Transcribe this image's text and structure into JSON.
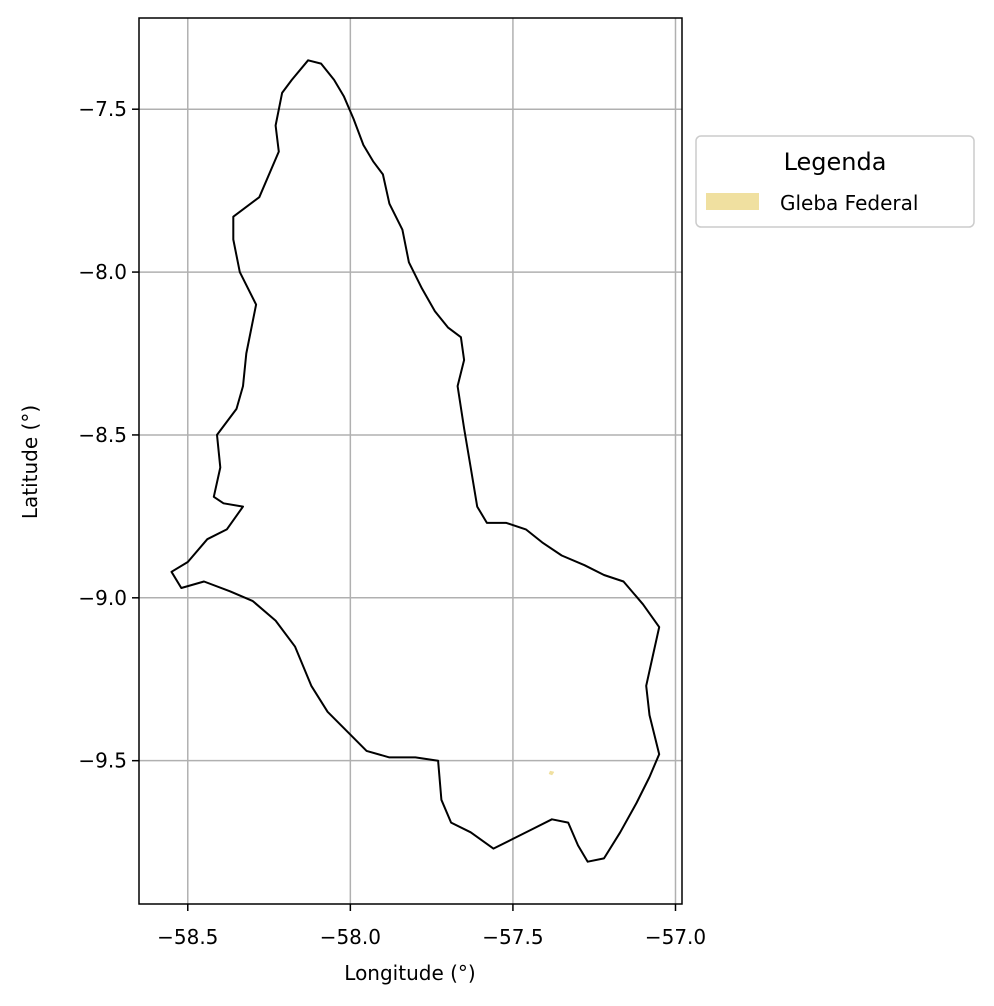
{
  "chart_data": {
    "type": "map",
    "xlabel": "Longitude (°)",
    "ylabel": "Latitude (°)",
    "xlim": [
      -58.65,
      -56.98
    ],
    "ylim": [
      -9.94,
      -7.22
    ],
    "xticks": [
      -58.5,
      -58.0,
      -57.5,
      -57.0
    ],
    "xtick_labels": [
      "−58.5",
      "−58.0",
      "−57.5",
      "−57.0"
    ],
    "yticks": [
      -7.5,
      -8.0,
      -8.5,
      -9.0,
      -9.5
    ],
    "ytick_labels": [
      "−7.5",
      "−8.0",
      "−8.5",
      "−9.0",
      "−9.5"
    ],
    "grid": true,
    "legend": {
      "title": "Legenda",
      "placement": "outside right, upper",
      "entries": [
        {
          "label": "Gleba Federal",
          "color": "#f0e0a0"
        }
      ]
    },
    "boundary_color": "#000000",
    "boundary": [
      [
        -58.13,
        -7.35
      ],
      [
        -58.09,
        -7.36
      ],
      [
        -58.05,
        -7.41
      ],
      [
        -58.02,
        -7.46
      ],
      [
        -57.99,
        -7.53
      ],
      [
        -57.96,
        -7.61
      ],
      [
        -57.93,
        -7.66
      ],
      [
        -57.9,
        -7.7
      ],
      [
        -57.88,
        -7.79
      ],
      [
        -57.84,
        -7.87
      ],
      [
        -57.82,
        -7.97
      ],
      [
        -57.78,
        -8.05
      ],
      [
        -57.74,
        -8.12
      ],
      [
        -57.7,
        -8.17
      ],
      [
        -57.66,
        -8.2
      ],
      [
        -57.65,
        -8.27
      ],
      [
        -57.67,
        -8.35
      ],
      [
        -57.65,
        -8.48
      ],
      [
        -57.63,
        -8.6
      ],
      [
        -57.61,
        -8.72
      ],
      [
        -57.58,
        -8.77
      ],
      [
        -57.52,
        -8.77
      ],
      [
        -57.46,
        -8.79
      ],
      [
        -57.41,
        -8.83
      ],
      [
        -57.35,
        -8.87
      ],
      [
        -57.28,
        -8.9
      ],
      [
        -57.22,
        -8.93
      ],
      [
        -57.16,
        -8.95
      ],
      [
        -57.1,
        -9.02
      ],
      [
        -57.05,
        -9.09
      ],
      [
        -57.07,
        -9.18
      ],
      [
        -57.09,
        -9.27
      ],
      [
        -57.08,
        -9.36
      ],
      [
        -57.05,
        -9.48
      ],
      [
        -57.08,
        -9.55
      ],
      [
        -57.12,
        -9.63
      ],
      [
        -57.17,
        -9.72
      ],
      [
        -57.22,
        -9.8
      ],
      [
        -57.27,
        -9.81
      ],
      [
        -57.3,
        -9.76
      ],
      [
        -57.33,
        -9.69
      ],
      [
        -57.38,
        -9.68
      ],
      [
        -57.44,
        -9.71
      ],
      [
        -57.5,
        -9.74
      ],
      [
        -57.56,
        -9.77
      ],
      [
        -57.63,
        -9.72
      ],
      [
        -57.69,
        -9.69
      ],
      [
        -57.72,
        -9.62
      ],
      [
        -57.73,
        -9.5
      ],
      [
        -57.8,
        -9.49
      ],
      [
        -57.88,
        -9.49
      ],
      [
        -57.95,
        -9.47
      ],
      [
        -58.0,
        -9.42
      ],
      [
        -58.07,
        -9.35
      ],
      [
        -58.12,
        -9.27
      ],
      [
        -58.17,
        -9.15
      ],
      [
        -58.23,
        -9.07
      ],
      [
        -58.3,
        -9.01
      ],
      [
        -58.37,
        -8.98
      ],
      [
        -58.45,
        -8.95
      ],
      [
        -58.52,
        -8.97
      ],
      [
        -58.55,
        -8.92
      ],
      [
        -58.5,
        -8.89
      ],
      [
        -58.44,
        -8.82
      ],
      [
        -58.38,
        -8.79
      ],
      [
        -58.33,
        -8.72
      ],
      [
        -58.39,
        -8.71
      ],
      [
        -58.42,
        -8.69
      ],
      [
        -58.4,
        -8.6
      ],
      [
        -58.41,
        -8.5
      ],
      [
        -58.35,
        -8.42
      ],
      [
        -58.33,
        -8.35
      ],
      [
        -58.32,
        -8.25
      ],
      [
        -58.29,
        -8.1
      ],
      [
        -58.34,
        -8.0
      ],
      [
        -58.36,
        -7.9
      ],
      [
        -58.36,
        -7.83
      ],
      [
        -58.28,
        -7.77
      ],
      [
        -58.22,
        -7.63
      ],
      [
        -58.23,
        -7.55
      ],
      [
        -58.21,
        -7.45
      ],
      [
        -58.18,
        -7.41
      ],
      [
        -58.13,
        -7.35
      ]
    ],
    "gleba_federal_polygon": [
      [
        -57.385,
        -9.533
      ],
      [
        -57.375,
        -9.535
      ],
      [
        -57.38,
        -9.543
      ],
      [
        -57.388,
        -9.54
      ]
    ]
  }
}
